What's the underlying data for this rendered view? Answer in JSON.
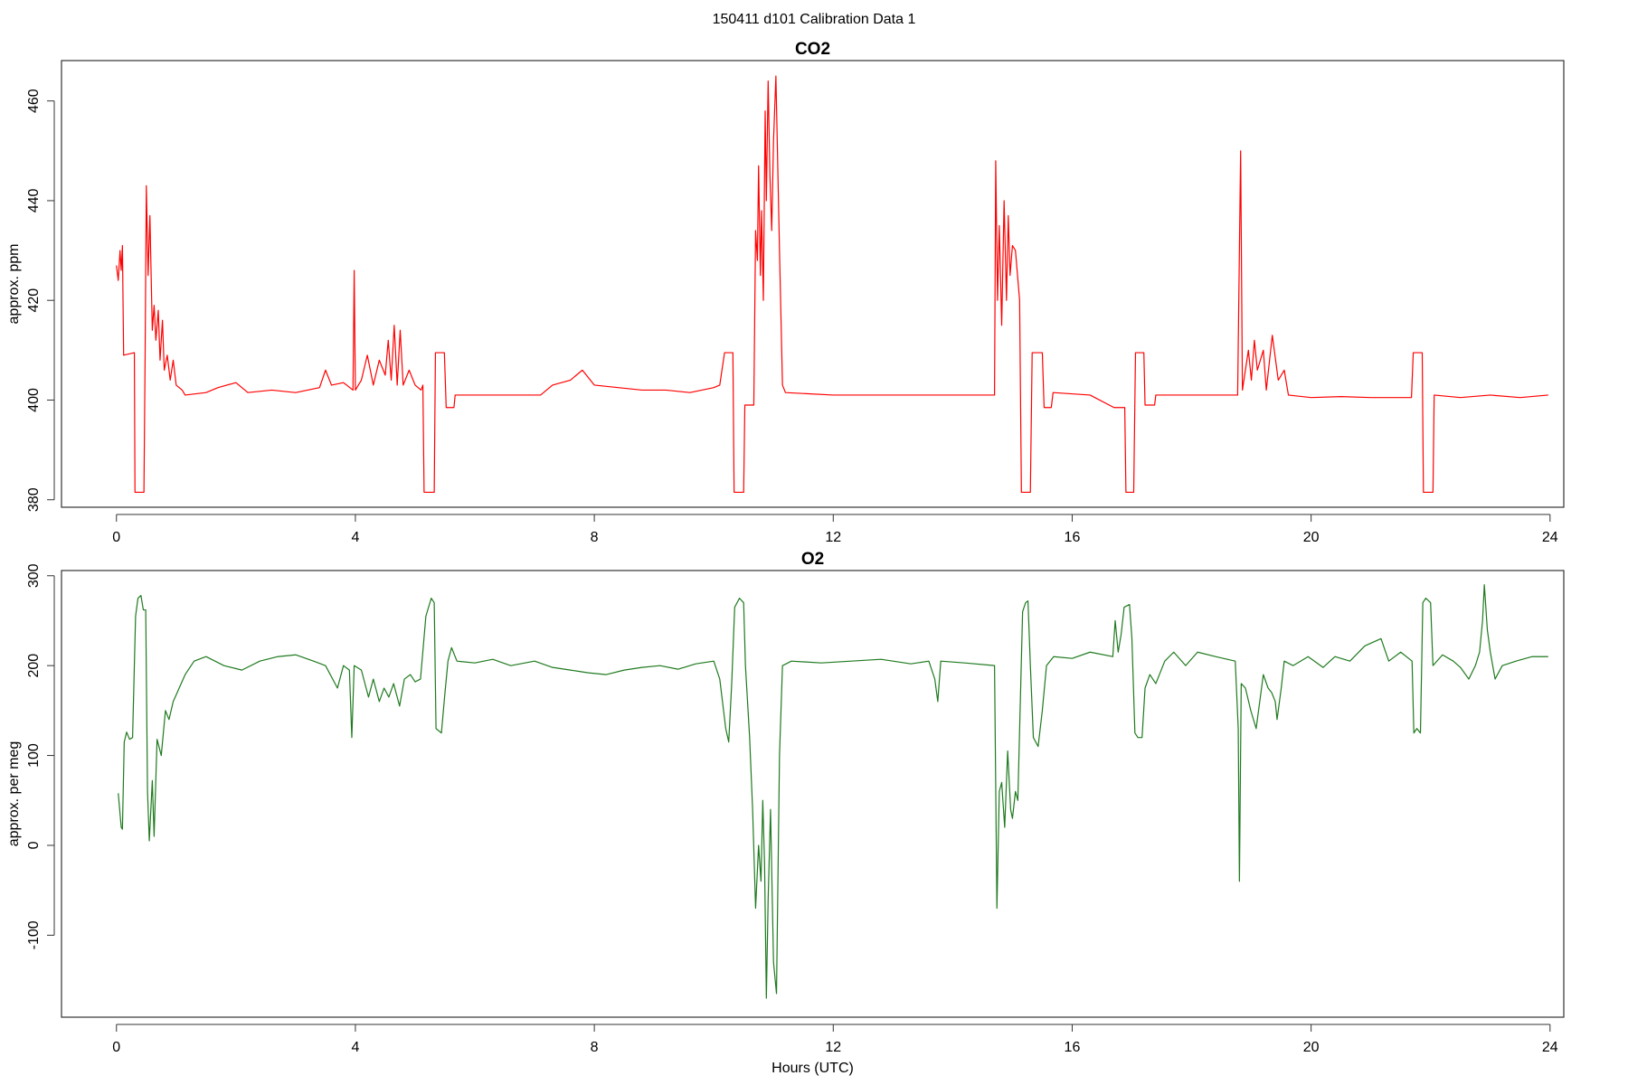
{
  "title": "150411   d101   Calibration Data 1",
  "chart_data": [
    {
      "type": "line",
      "title": "CO2",
      "ylabel": "approx. ppm",
      "color": "#ff0000",
      "xlim": [
        -0.92,
        24.23
      ],
      "xticks": [
        0,
        4,
        8,
        12,
        16,
        20,
        24
      ],
      "ylim": [
        378.5,
        468.1
      ],
      "yticks": [
        380,
        400,
        420,
        440,
        460
      ],
      "x": [
        0,
        0.03,
        0.06,
        0.08,
        0.1,
        0.12,
        0.3,
        0.31,
        0.46,
        0.48,
        0.5,
        0.53,
        0.56,
        0.6,
        0.63,
        0.66,
        0.7,
        0.73,
        0.77,
        0.8,
        0.85,
        0.9,
        0.95,
        1.0,
        1.1,
        1.15,
        1.5,
        1.7,
        2.0,
        2.2,
        2.6,
        3.0,
        3.4,
        3.5,
        3.6,
        3.8,
        3.96,
        3.98,
        4.0,
        4.1,
        4.2,
        4.3,
        4.4,
        4.5,
        4.55,
        4.6,
        4.65,
        4.7,
        4.75,
        4.8,
        4.9,
        5.0,
        5.1,
        5.13,
        5.15,
        5.32,
        5.34,
        5.49,
        5.52,
        5.65,
        5.67,
        7.1,
        7.3,
        7.6,
        7.8,
        8.0,
        8.4,
        8.8,
        9.2,
        9.6,
        10.0,
        10.1,
        10.18,
        10.32,
        10.34,
        10.5,
        10.52,
        10.67,
        10.7,
        10.73,
        10.75,
        10.78,
        10.8,
        10.83,
        10.86,
        10.88,
        10.91,
        10.94,
        10.97,
        11.0,
        11.04,
        11.1,
        11.15,
        11.2,
        12.0,
        13.0,
        14.0,
        14.7,
        14.72,
        14.75,
        14.78,
        14.82,
        14.86,
        14.9,
        14.93,
        14.96,
        15.0,
        15.05,
        15.12,
        15.15,
        15.3,
        15.33,
        15.5,
        15.53,
        15.65,
        15.68,
        16.3,
        16.7,
        16.88,
        16.9,
        17.03,
        17.06,
        17.2,
        17.22,
        17.38,
        17.4,
        18.0,
        18.77,
        18.82,
        18.85,
        18.9,
        18.95,
        19.0,
        19.05,
        19.1,
        19.2,
        19.25,
        19.35,
        19.45,
        19.55,
        19.62,
        20.0,
        20.5,
        21.0,
        21.68,
        21.71,
        21.86,
        21.88,
        22.04,
        22.06,
        22.5,
        23.0,
        23.5,
        23.97
      ],
      "values": [
        427,
        424,
        430,
        426,
        431,
        409,
        409.5,
        381.5,
        381.5,
        409,
        443,
        425,
        437,
        414,
        419,
        412,
        418,
        408,
        416,
        406,
        409,
        404,
        408,
        403,
        402,
        401,
        401.5,
        402.5,
        403.5,
        401.5,
        402,
        401.5,
        402.5,
        406,
        403,
        403.5,
        402,
        426,
        402,
        404,
        409,
        403,
        408,
        405,
        412,
        404,
        415,
        403,
        414,
        403,
        406,
        403,
        402,
        403,
        381.5,
        381.5,
        409.5,
        409.5,
        398.5,
        398.5,
        401,
        401,
        403,
        404,
        406,
        403,
        402.5,
        402,
        402,
        401.5,
        402.5,
        403,
        409.5,
        409.5,
        381.5,
        381.5,
        399,
        399,
        434,
        428,
        447,
        425,
        438,
        420,
        458,
        440,
        464,
        445,
        434,
        452,
        465,
        430,
        403,
        401.5,
        401,
        401,
        401,
        401,
        448,
        420,
        435,
        415,
        440,
        420,
        437,
        425,
        431,
        430,
        420,
        381.5,
        381.5,
        409.5,
        409.5,
        398.5,
        398.5,
        401.5,
        401,
        398.5,
        398.5,
        381.5,
        381.5,
        409.5,
        409.5,
        399,
        399,
        401,
        401,
        401,
        450,
        402,
        406,
        410,
        404,
        412,
        406,
        410,
        402,
        413,
        404,
        406,
        401,
        400.5,
        400.7,
        400.5,
        400.5,
        409.5,
        409.5,
        381.5,
        381.5,
        401,
        400.5,
        401,
        400.5,
        401
      ]
    },
    {
      "type": "line",
      "title": "O2",
      "ylabel": "approx. per meg",
      "xlabel": "Hours (UTC)",
      "color": "#1f7a1f",
      "xlim": [
        -0.92,
        24.23
      ],
      "xticks": [
        0,
        4,
        8,
        12,
        16,
        20,
        24
      ],
      "ylim": [
        -191.2,
        305.8
      ],
      "yticks": [
        -100,
        0,
        100,
        200,
        300
      ],
      "x": [
        0.03,
        0.08,
        0.1,
        0.13,
        0.17,
        0.22,
        0.27,
        0.32,
        0.36,
        0.41,
        0.45,
        0.49,
        0.52,
        0.55,
        0.6,
        0.63,
        0.68,
        0.75,
        0.82,
        0.88,
        0.95,
        1.05,
        1.15,
        1.3,
        1.5,
        1.8,
        2.1,
        2.4,
        2.7,
        3.0,
        3.3,
        3.5,
        3.7,
        3.8,
        3.9,
        3.94,
        3.98,
        4.1,
        4.22,
        4.3,
        4.4,
        4.48,
        4.56,
        4.64,
        4.74,
        4.82,
        4.92,
        5.0,
        5.09,
        5.18,
        5.27,
        5.32,
        5.35,
        5.44,
        5.5,
        5.55,
        5.61,
        5.7,
        6.0,
        6.3,
        6.6,
        7.0,
        7.3,
        7.6,
        7.9,
        8.2,
        8.5,
        8.8,
        9.1,
        9.4,
        9.7,
        10.0,
        10.1,
        10.2,
        10.25,
        10.3,
        10.35,
        10.43,
        10.5,
        10.53,
        10.6,
        10.65,
        10.7,
        10.75,
        10.79,
        10.82,
        10.85,
        10.88,
        10.91,
        10.95,
        11.0,
        11.05,
        11.1,
        11.15,
        11.3,
        11.8,
        12.3,
        12.8,
        13.3,
        13.6,
        13.7,
        13.75,
        13.8,
        14.2,
        14.7,
        14.74,
        14.78,
        14.82,
        14.87,
        14.92,
        14.97,
        15.0,
        15.05,
        15.09,
        15.17,
        15.22,
        15.26,
        15.3,
        15.35,
        15.43,
        15.5,
        15.57,
        15.69,
        16.0,
        16.3,
        16.68,
        16.72,
        16.77,
        16.82,
        16.87,
        16.96,
        17.0,
        17.05,
        17.1,
        17.17,
        17.22,
        17.3,
        17.4,
        17.55,
        17.7,
        17.9,
        18.1,
        18.4,
        18.73,
        18.78,
        18.8,
        18.83,
        18.9,
        18.99,
        19.08,
        19.15,
        19.2,
        19.28,
        19.34,
        19.4,
        19.43,
        19.5,
        19.55,
        19.7,
        19.95,
        20.2,
        20.4,
        20.65,
        20.9,
        21.17,
        21.3,
        21.5,
        21.69,
        21.72,
        21.77,
        21.83,
        21.87,
        21.92,
        22.0,
        22.04,
        22.2,
        22.38,
        22.5,
        22.64,
        22.75,
        22.82,
        22.87,
        22.9,
        22.95,
        23.0,
        23.08,
        23.2,
        23.43,
        23.7,
        23.97
      ],
      "values": [
        58,
        20,
        18,
        115,
        126,
        118,
        120,
        255,
        275,
        278,
        262,
        262,
        60,
        5,
        72,
        10,
        118,
        100,
        150,
        140,
        160,
        175,
        190,
        205,
        210,
        200,
        195,
        205,
        210,
        212,
        205,
        200,
        175,
        200,
        195,
        120,
        200,
        195,
        165,
        185,
        160,
        175,
        165,
        180,
        155,
        185,
        190,
        182,
        185,
        255,
        275,
        270,
        130,
        125,
        170,
        205,
        220,
        205,
        203,
        207,
        200,
        205,
        198,
        195,
        192,
        190,
        195,
        198,
        200,
        196,
        202,
        205,
        185,
        130,
        115,
        180,
        265,
        275,
        270,
        200,
        120,
        40,
        -70,
        0,
        -40,
        50,
        -20,
        -170,
        -60,
        40,
        -130,
        -165,
        100,
        200,
        205,
        203,
        205,
        207,
        202,
        205,
        185,
        160,
        205,
        203,
        200,
        -70,
        60,
        70,
        20,
        105,
        40,
        30,
        60,
        50,
        260,
        270,
        272,
        200,
        120,
        110,
        150,
        200,
        210,
        208,
        215,
        210,
        250,
        215,
        235,
        265,
        268,
        230,
        125,
        120,
        120,
        175,
        190,
        180,
        205,
        215,
        200,
        215,
        210,
        205,
        130,
        -40,
        180,
        175,
        150,
        130,
        165,
        190,
        175,
        170,
        160,
        140,
        175,
        205,
        200,
        210,
        198,
        210,
        205,
        222,
        230,
        205,
        215,
        205,
        125,
        130,
        125,
        270,
        275,
        270,
        200,
        212,
        205,
        198,
        185,
        200,
        215,
        250,
        290,
        240,
        215,
        185,
        200,
        205,
        210,
        210
      ]
    }
  ]
}
